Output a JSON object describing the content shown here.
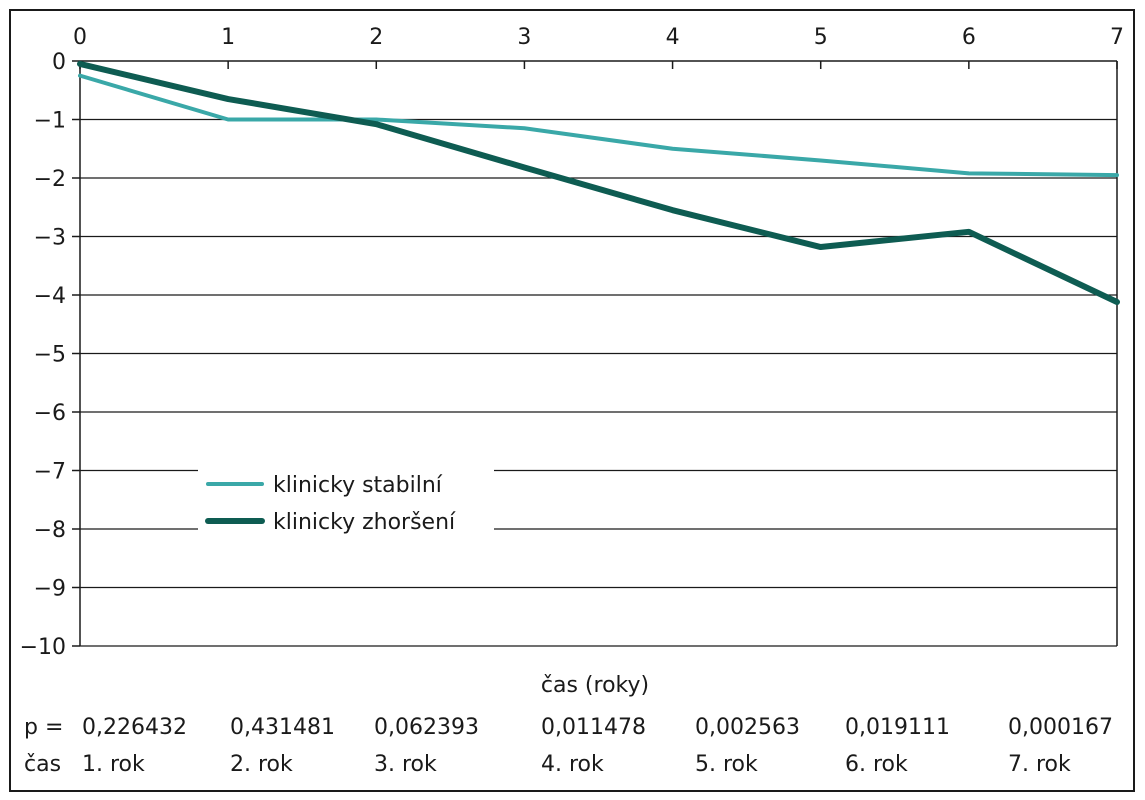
{
  "chart_data": {
    "type": "line",
    "x": [
      0,
      1,
      2,
      3,
      4,
      5,
      6,
      7
    ],
    "xlim": [
      0,
      7
    ],
    "ylim": [
      -10,
      0
    ],
    "x_ticks": [
      "0",
      "1",
      "2",
      "3",
      "4",
      "5",
      "6",
      "7"
    ],
    "y_ticks": [
      "0",
      "−1",
      "−2",
      "−3",
      "−4",
      "−5",
      "−6",
      "−7",
      "−8",
      "−9",
      "−10"
    ],
    "y_tick_values": [
      0,
      -1,
      -2,
      -3,
      -4,
      -5,
      -6,
      -7,
      -8,
      -9,
      -10
    ],
    "xlabel": "čas (roky)",
    "ylabel": "",
    "grid": "horizontal",
    "legend_position": "center-left",
    "series": [
      {
        "name": "klinicky stabilní",
        "color": "#3aa8a8",
        "values": [
          -0.25,
          -1.0,
          -1.0,
          -1.15,
          -1.5,
          -1.7,
          -1.92,
          -1.95
        ]
      },
      {
        "name": "klinicky zhoršení",
        "color": "#0e5c52",
        "values": [
          -0.05,
          -0.65,
          -1.08,
          -1.82,
          -2.55,
          -3.18,
          -2.92,
          -4.12
        ]
      }
    ]
  },
  "p_row": {
    "label": "p =",
    "values": [
      "0,226432",
      "0,431481",
      "0,062393",
      "0,011478",
      "0,002563",
      "0,019111",
      "0,000167"
    ]
  },
  "time_row": {
    "label": "čas",
    "values": [
      "1. rok",
      "2. rok",
      "3. rok",
      "4. rok",
      "5. rok",
      "6. rok",
      "7. rok"
    ]
  }
}
